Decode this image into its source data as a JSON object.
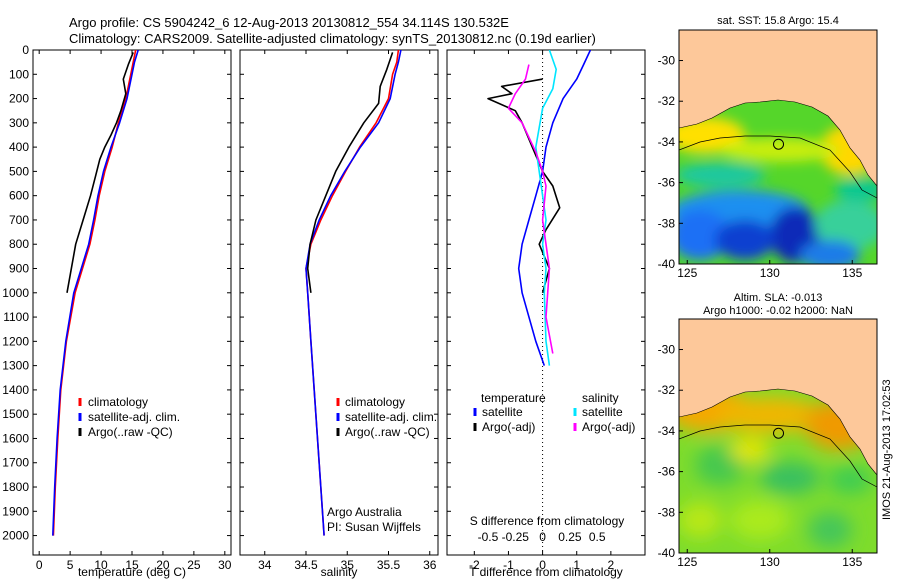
{
  "header": {
    "line1": "Argo profile: CS 5904242_6 12-Aug-2013 20130812_554 34.114S 130.532E",
    "line2": "Climatology: CARS2009. Satellite-adjusted climatology: synTS_20130812.nc (0.19d earlier)"
  },
  "stamp": "IMOS 21-Aug-2013 17:02:53",
  "colors": {
    "climatology": "#ff0000",
    "satellite": "#0000ff",
    "argo": "#000000",
    "salinity_satellite": "#00e5ff",
    "salinity_argo": "#ff00ff",
    "land": "#fdc89a"
  },
  "chart_data": [
    {
      "type": "line",
      "name": "temperature-profile",
      "xlabel": "temperature (deg C)",
      "ylabel": "",
      "xlim": [
        -1,
        31
      ],
      "ylim": [
        2080,
        0
      ],
      "xticks": [
        0,
        5,
        10,
        15,
        20,
        25,
        30
      ],
      "yticks": [
        0,
        100,
        200,
        300,
        400,
        500,
        600,
        700,
        800,
        900,
        1000,
        1100,
        1200,
        1300,
        1400,
        1500,
        1600,
        1700,
        1800,
        1900,
        2000
      ],
      "legend_position": "lower-center",
      "series": [
        {
          "name": "climatology",
          "color": "#ff0000",
          "x": [
            15.6,
            15.2,
            14.8,
            14.0,
            12.8,
            11.8,
            10.6,
            9.7,
            9.0,
            8.2,
            7.0,
            5.8,
            4.4,
            3.5,
            3.0,
            2.6,
            2.3
          ],
          "y": [
            0,
            50,
            100,
            200,
            300,
            400,
            500,
            600,
            700,
            800,
            900,
            1000,
            1200,
            1400,
            1600,
            1800,
            2000
          ]
        },
        {
          "name": "satellite-adj. clim.",
          "color": "#0000ff",
          "x": [
            16.0,
            15.4,
            15.0,
            14.2,
            13.0,
            11.6,
            10.4,
            9.5,
            8.8,
            8.0,
            6.8,
            5.6,
            4.3,
            3.4,
            2.9,
            2.5,
            2.2
          ],
          "y": [
            0,
            50,
            100,
            200,
            300,
            400,
            500,
            600,
            700,
            800,
            900,
            1000,
            1200,
            1400,
            1600,
            1800,
            2000
          ]
        },
        {
          "name": "Argo(..raw -QC)",
          "color": "#000000",
          "x": [
            15.2,
            14.4,
            13.6,
            14.0,
            13.2,
            12.5,
            11.6,
            10.6,
            9.8,
            9.1,
            8.3,
            7.1,
            5.9,
            4.5
          ],
          "y": [
            10,
            60,
            120,
            180,
            250,
            300,
            350,
            400,
            450,
            520,
            600,
            700,
            800,
            1000
          ]
        }
      ]
    },
    {
      "type": "line",
      "name": "salinity-profile",
      "xlabel": "salinity",
      "ylabel": "",
      "xlim": [
        33.7,
        36.1
      ],
      "ylim": [
        2080,
        0
      ],
      "xticks": [
        34,
        34.5,
        35,
        35.5,
        36
      ],
      "legend_position": "lower-center",
      "annotation": [
        "Argo Australia",
        "PI: Susan Wijffels"
      ],
      "series": [
        {
          "name": "climatology",
          "color": "#ff0000",
          "x": [
            35.62,
            35.6,
            35.55,
            35.5,
            35.35,
            35.15,
            34.98,
            34.82,
            34.68,
            34.56,
            34.5,
            34.52,
            34.56,
            34.6,
            34.64,
            34.68,
            34.72
          ],
          "y": [
            0,
            50,
            100,
            200,
            300,
            400,
            500,
            600,
            700,
            800,
            900,
            1000,
            1200,
            1400,
            1600,
            1800,
            2000
          ]
        },
        {
          "name": "satellite-adj. clim.",
          "color": "#0000ff",
          "x": [
            35.65,
            35.62,
            35.58,
            35.52,
            35.38,
            35.16,
            34.97,
            34.8,
            34.66,
            34.55,
            34.5,
            34.52,
            34.56,
            34.6,
            34.64,
            34.68,
            34.72
          ],
          "y": [
            0,
            50,
            100,
            200,
            300,
            400,
            500,
            600,
            700,
            800,
            900,
            1000,
            1200,
            1400,
            1600,
            1800,
            2000
          ]
        },
        {
          "name": "Argo(..raw -QC)",
          "color": "#000000",
          "x": [
            35.55,
            35.48,
            35.4,
            35.38,
            35.2,
            35.02,
            34.86,
            34.74,
            34.62,
            34.55,
            34.52,
            34.56
          ],
          "y": [
            10,
            80,
            150,
            220,
            300,
            400,
            500,
            600,
            700,
            800,
            900,
            1000
          ]
        }
      ]
    },
    {
      "type": "line",
      "name": "difference-profile",
      "xlabel": "T difference from climatology",
      "xlabel_top": "S difference from climatology",
      "ylabel": "",
      "xlim": [
        -2.8,
        3.0
      ],
      "ylim": [
        2080,
        0
      ],
      "xticks": [
        -2,
        -1,
        0,
        1,
        2
      ],
      "xticks_top": [
        -0.5,
        -0.25,
        0,
        0.25,
        0.5
      ],
      "legend_position": "lower-center",
      "legend_headers": [
        "temperature",
        "salinity"
      ],
      "series": [
        {
          "name": "satellite",
          "group": "temperature",
          "color": "#0000ff",
          "x": [
            1.4,
            1.2,
            1.0,
            0.6,
            0.3,
            0.1,
            0.0,
            -0.2,
            -0.4,
            -0.6,
            -0.7,
            -0.6,
            -0.2,
            0.05
          ],
          "y": [
            0,
            60,
            120,
            200,
            300,
            400,
            500,
            600,
            700,
            800,
            900,
            1000,
            1200,
            1300
          ]
        },
        {
          "name": "Argo(-adj)",
          "group": "temperature",
          "color": "#000000",
          "x": [
            0.0,
            -1.2,
            -0.9,
            -1.6,
            -0.8,
            -0.6,
            -0.3,
            0.0,
            0.3,
            0.5,
            0.1,
            -0.1,
            0.2,
            0.0
          ],
          "y": [
            120,
            150,
            180,
            200,
            250,
            300,
            400,
            500,
            560,
            650,
            740,
            800,
            900,
            1000
          ]
        },
        {
          "name": "satellite",
          "group": "salinity",
          "color": "#00e5ff",
          "x": [
            0.2,
            0.4,
            0.3,
            0.0,
            -0.1,
            -0.2,
            -0.1,
            0.0,
            0.1,
            0.0,
            0.1,
            0.05,
            0.1,
            0.2
          ],
          "y": [
            0,
            80,
            160,
            240,
            320,
            400,
            500,
            600,
            700,
            800,
            900,
            1000,
            1200,
            1300
          ]
        },
        {
          "name": "Argo(-adj)",
          "group": "salinity",
          "color": "#ff00ff",
          "x": [
            -0.4,
            -0.5,
            -0.8,
            -1.0,
            -0.6,
            -0.4,
            -0.2,
            0.0,
            0.1,
            0.0,
            0.2,
            0.1,
            0.3
          ],
          "y": [
            60,
            120,
            180,
            240,
            300,
            360,
            420,
            500,
            560,
            700,
            900,
            1100,
            1250
          ]
        }
      ]
    },
    {
      "type": "heatmap",
      "name": "sst-map",
      "title": "sat. SST: 15.8 Argo: 15.4",
      "xlim": [
        124.5,
        136.5
      ],
      "ylim": [
        -40,
        -28.5
      ],
      "xticks": [
        125,
        130,
        135
      ],
      "yticks": [
        -30,
        -32,
        -34,
        -36,
        -38,
        -40
      ],
      "argo_position": [
        130.532,
        -34.114
      ]
    },
    {
      "type": "heatmap",
      "name": "sla-map",
      "title": "Altim. SLA: -0.013",
      "subtitle": "Argo h1000: -0.02 h2000: NaN",
      "xlim": [
        124.5,
        136.5
      ],
      "ylim": [
        -40,
        -28.5
      ],
      "xticks": [
        125,
        130,
        135
      ],
      "yticks": [
        -30,
        -32,
        -34,
        -36,
        -38,
        -40
      ],
      "argo_position": [
        130.532,
        -34.114
      ]
    }
  ]
}
